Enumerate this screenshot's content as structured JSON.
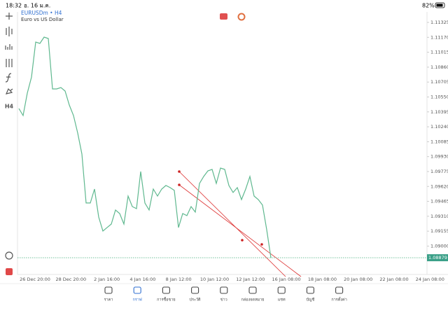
{
  "status_bar": {
    "time": "18:32",
    "date": "อ. 16 ม.ค.",
    "battery": "82%"
  },
  "header": {
    "symbol": "EURUSDm • H4",
    "description": "Euro vs US Dollar"
  },
  "toolbar_timeframe": "H4",
  "chart": {
    "type": "line",
    "color": "#5fb88f",
    "values": [
      1.1043,
      1.10357,
      1.1059,
      1.10757,
      1.11121,
      1.11107,
      1.11172,
      1.11158,
      1.10634,
      1.10634,
      1.10648,
      1.10612,
      1.10466,
      1.10357,
      1.10175,
      1.09957,
      1.09448,
      1.09448,
      1.09593,
      1.09302,
      1.09157,
      1.09193,
      1.09229,
      1.09375,
      1.09338,
      1.09229,
      1.0952,
      1.09411,
      1.09389,
      1.09775,
      1.09448,
      1.09375,
      1.09593,
      1.0952,
      1.09593,
      1.0963,
      1.09608,
      1.09579,
      1.09193,
      1.09338,
      1.09317,
      1.09411,
      1.09353,
      1.09651,
      1.09724,
      1.09782,
      1.09797,
      1.09651,
      1.09811,
      1.09797,
      1.0963,
      1.09557,
      1.09608,
      1.09484,
      1.09593,
      1.09724,
      1.0952,
      1.09484,
      1.09426,
      1.09171,
      1.08879
    ],
    "ylim": [
      1.08683,
      1.11427
    ],
    "yticks": [
      1.11325,
      {
        "value": 1.1117,
        "label": "1.11170"
      },
      1.11015,
      {
        "value": 1.1086,
        "label": "1.10860"
      },
      1.10705,
      {
        "value": 1.1055,
        "label": "1.10550"
      },
      1.10395,
      {
        "value": 1.1024,
        "label": "1.10240"
      },
      1.10085,
      {
        "value": 1.0993,
        "label": "1.09930"
      },
      1.09775,
      {
        "value": 1.0962,
        "label": "1.09620"
      },
      1.09465,
      {
        "value": 1.0931,
        "label": "1.09310"
      },
      1.09155,
      {
        "value": 1.09,
        "label": "1.09000"
      }
    ],
    "last_price": 1.08879,
    "x_labels": [
      "26 Dec 20:00",
      "28 Dec 20:00",
      "2 Jan 16:00",
      "4 Jan 16:00",
      "8 Jan 12:00",
      "10 Jan 12:00",
      "12 Jan 12:00",
      "16 Jan 08:00",
      "18 Jan 08:00",
      "20 Jan 08:00",
      "22 Jan 08:00",
      "24 Jan 08:00"
    ]
  },
  "nav": [
    "ราคา",
    "กราฟ",
    "การซื้อขาย",
    "ประวัติ",
    "ข่าว",
    "กล่องจดหมาย",
    "แชท",
    "บัญชี",
    "การตั้งค่า"
  ]
}
